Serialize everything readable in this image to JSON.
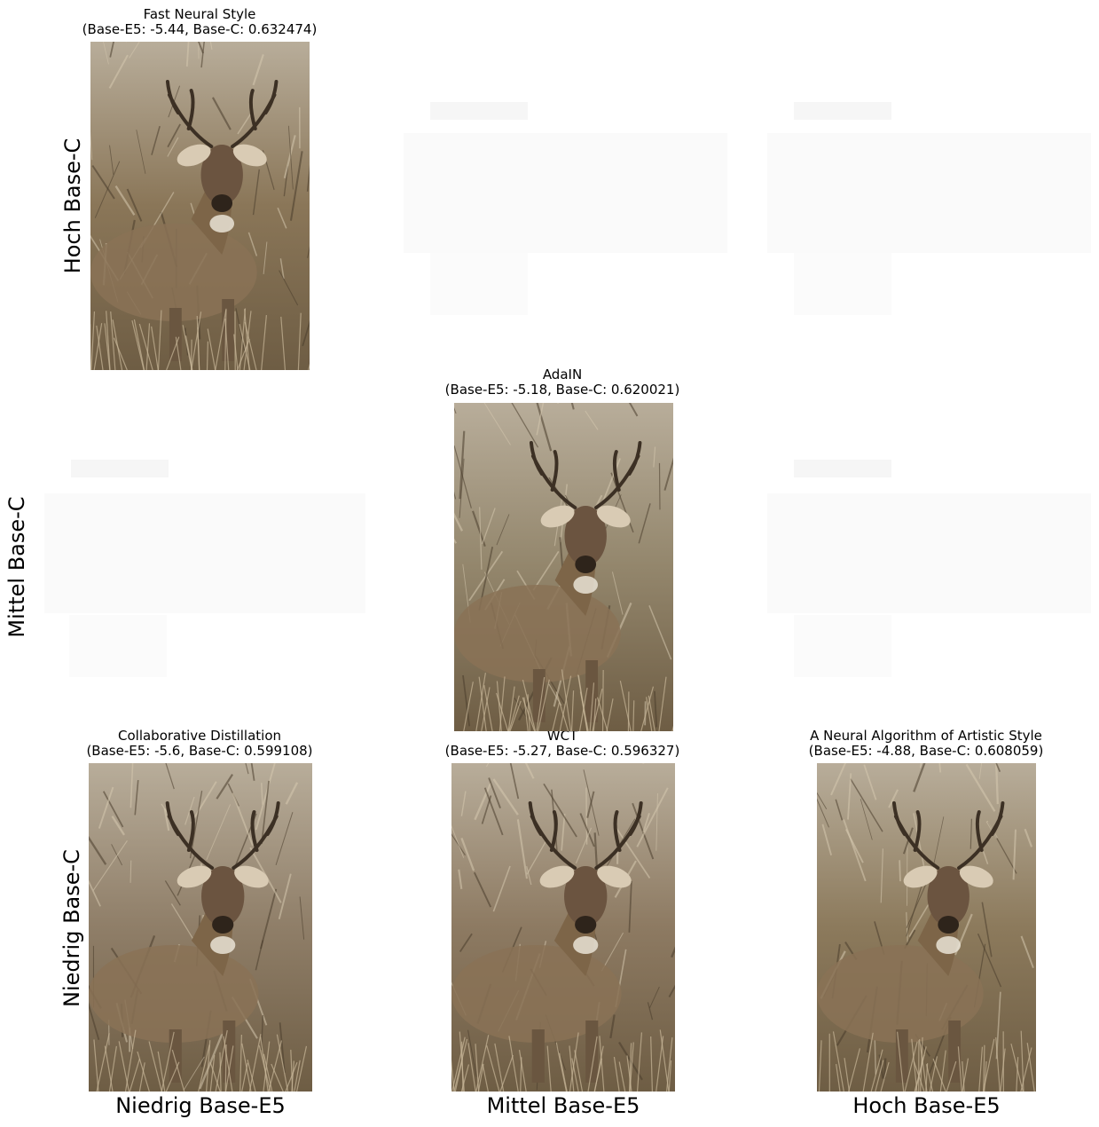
{
  "row_labels": [
    "Hoch Base-C",
    "Mittel Base-C",
    "Niedrig Base-C"
  ],
  "col_labels": [
    "Niedrig Base-E5",
    "Mittel Base-E5",
    "Hoch Base-E5"
  ],
  "panels": [
    {
      "method": "Fast Neural Style",
      "scores": "(Base-E5: -5.44, Base-C: 0.632474)",
      "image": "stylized-deer-photo",
      "tone": "#8a7658"
    },
    {
      "method": "AdaIN",
      "scores": "(Base-E5: -5.18, Base-C: 0.620021)",
      "image": "stylized-deer-photo",
      "tone": "#93866c"
    },
    {
      "method": "Collaborative Distillation",
      "scores": "(Base-E5: -5.6, Base-C: 0.599108)",
      "image": "stylized-deer-photo",
      "tone": "#8f7e68"
    },
    {
      "method": "WCT",
      "scores": "(Base-E5: -5.27, Base-C: 0.596327)",
      "image": "stylized-deer-photo",
      "tone": "#8d7a62"
    },
    {
      "method": "A Neural Algorithm of Artistic Style",
      "scores": "(Base-E5: -4.88, Base-C: 0.608059)",
      "image": "stylized-deer-photo",
      "tone": "#8c7a5c"
    }
  ]
}
